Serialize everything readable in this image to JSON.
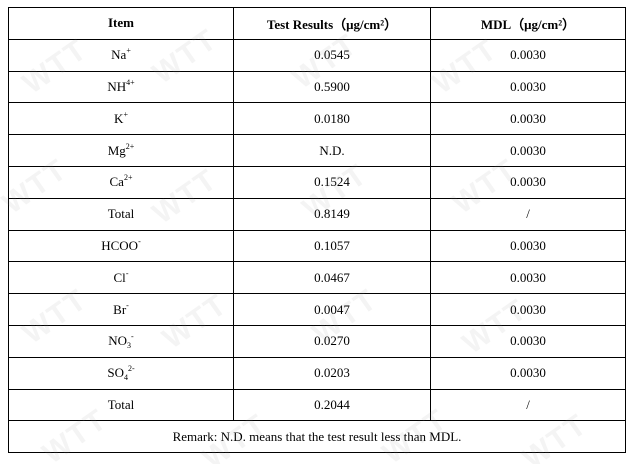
{
  "table": {
    "headers": {
      "item": "Item",
      "result": "Test Results（μg/cm²）",
      "mdl": "MDL（μg/cm²）"
    },
    "rows": [
      {
        "item": "Na",
        "sup": "+",
        "sub": "",
        "result": "0.0545",
        "mdl": "0.0030"
      },
      {
        "item": "NH",
        "sup": "4+",
        "sub": "",
        "result": "0.5900",
        "mdl": "0.0030"
      },
      {
        "item": "K",
        "sup": "+",
        "sub": "",
        "result": "0.0180",
        "mdl": "0.0030"
      },
      {
        "item": "Mg",
        "sup": "2+",
        "sub": "",
        "result": "N.D.",
        "mdl": "0.0030"
      },
      {
        "item": "Ca",
        "sup": "2+",
        "sub": "",
        "result": "0.1524",
        "mdl": "0.0030"
      },
      {
        "item": "Total",
        "sup": "",
        "sub": "",
        "result": "0.8149",
        "mdl": "/"
      },
      {
        "item": "HCOO",
        "sup": "-",
        "sub": "",
        "result": "0.1057",
        "mdl": "0.0030"
      },
      {
        "item": "Cl",
        "sup": "-",
        "sub": "",
        "result": "0.0467",
        "mdl": "0.0030"
      },
      {
        "item": "Br",
        "sup": "-",
        "sub": "",
        "result": "0.0047",
        "mdl": "0.0030"
      },
      {
        "item": "NO",
        "sup": "-",
        "sub": "3",
        "result": "0.0270",
        "mdl": "0.0030"
      },
      {
        "item": "SO",
        "sup": "2-",
        "sub": "4",
        "result": "0.0203",
        "mdl": "0.0030"
      },
      {
        "item": "Total",
        "sup": "",
        "sub": "",
        "result": "0.2044",
        "mdl": "/"
      }
    ],
    "remark": "Remark: N.D. means that the test result less than MDL."
  },
  "watermark": {
    "text": "WTT",
    "color": "#969696"
  }
}
